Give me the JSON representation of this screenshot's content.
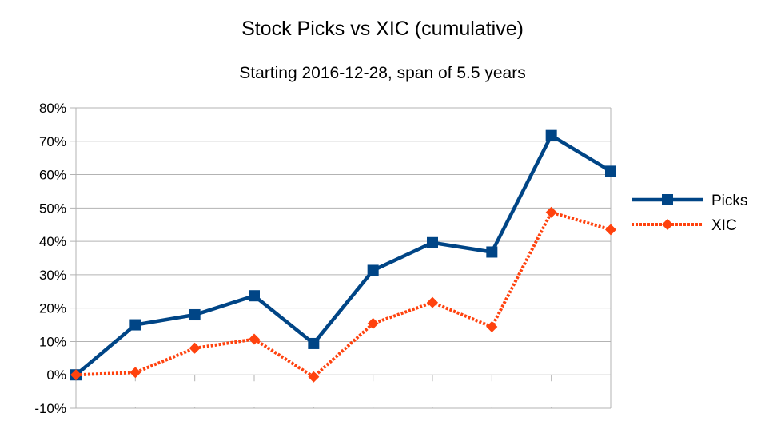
{
  "chart_data": {
    "type": "line",
    "title": "Stock Picks vs XIC (cumulative)",
    "subtitle": "Starting 2016-12-28, span of 5.5 years",
    "xlabel": "",
    "ylabel": "",
    "ylim": [
      -0.1,
      0.8
    ],
    "yticks": [
      -0.1,
      0,
      0.1,
      0.2,
      0.3,
      0.4,
      0.5,
      0.6,
      0.7,
      0.8
    ],
    "ytick_labels": [
      "-10%",
      "0%",
      "10%",
      "20%",
      "30%",
      "40%",
      "50%",
      "60%",
      "70%",
      "80%"
    ],
    "grid": true,
    "legend": "right",
    "x_count": 10,
    "series": [
      {
        "name": "Picks",
        "color": "#004586",
        "marker": "square",
        "line": "solid",
        "values": [
          0.0,
          0.15,
          0.18,
          0.237,
          0.094,
          0.313,
          0.396,
          0.368,
          0.717,
          0.61
        ]
      },
      {
        "name": "XIC",
        "color": "#ff420e",
        "marker": "diamond",
        "line": "dotted",
        "values": [
          0.0,
          0.007,
          0.08,
          0.107,
          -0.006,
          0.154,
          0.217,
          0.144,
          0.487,
          0.435
        ]
      }
    ]
  }
}
